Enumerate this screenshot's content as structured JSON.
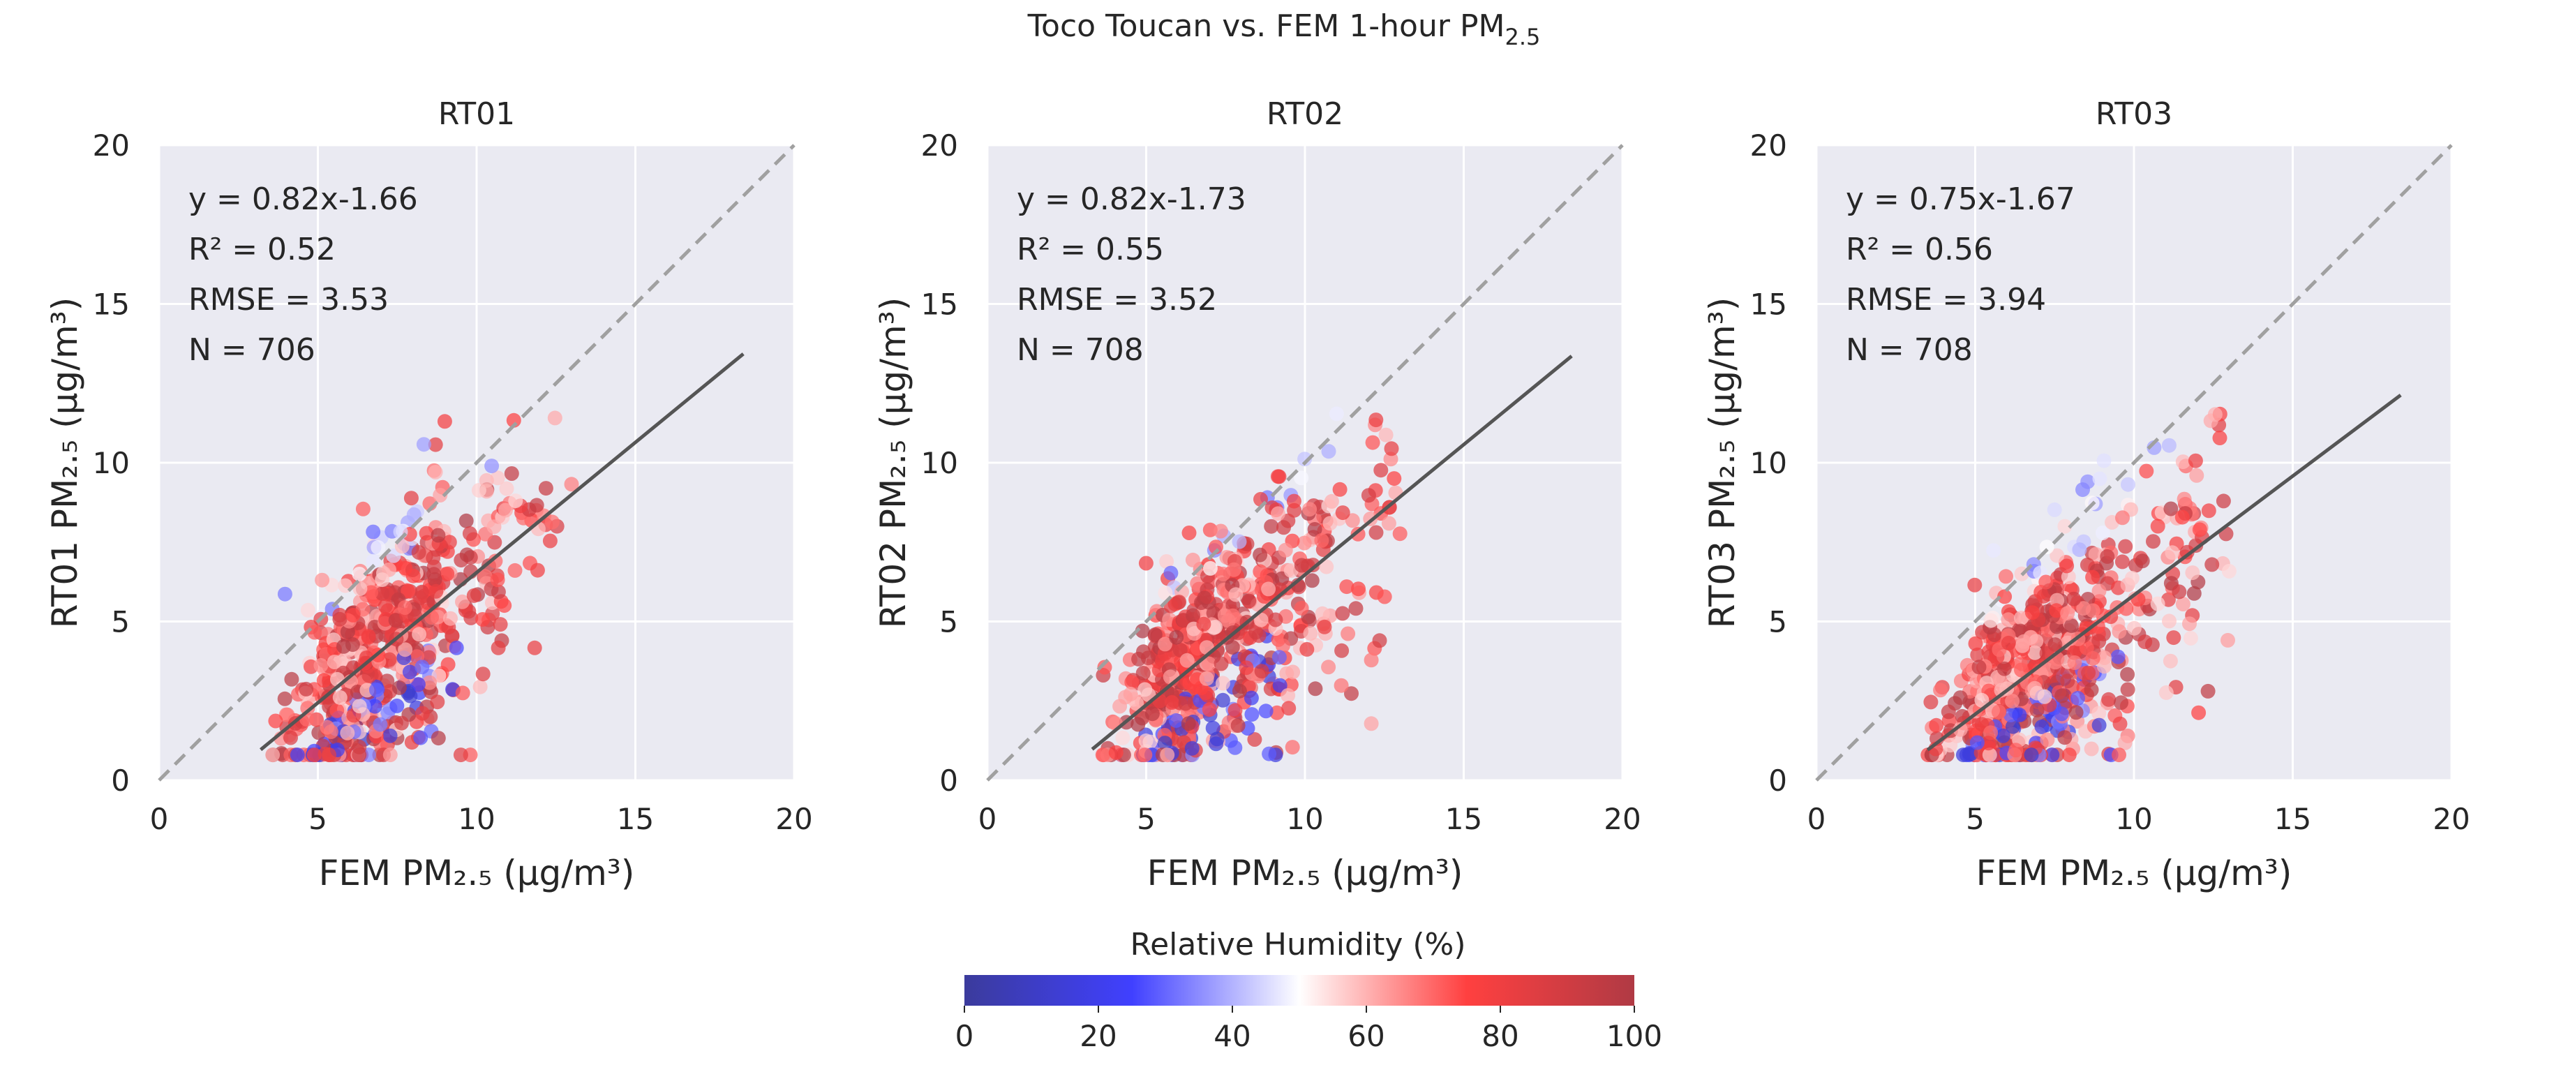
{
  "figure": {
    "title_prefix": "Toco Toucan vs. FEM 1-hour PM",
    "title_sub": "2.5"
  },
  "colorbar": {
    "label": "Relative Humidity (%)",
    "ticks": [
      "0",
      "20",
      "40",
      "60",
      "80",
      "100"
    ],
    "range": [
      0,
      100
    ],
    "colormap": [
      "#3b3b9c",
      "#4040ff",
      "#ffffff",
      "#ff4040",
      "#b03a44"
    ]
  },
  "colors": {
    "axes_bg": "#eaeaf2",
    "grid": "#ffffff",
    "fit_line": "#555555",
    "identity_line": "#a0a0a0"
  },
  "chart_data": [
    {
      "type": "scatter",
      "title": "RT01",
      "xlabel": "FEM PM₂.₅ (μg/m³)",
      "ylabel": "RT01 PM₂.₅ (μg/m³)",
      "xlim": [
        0,
        20
      ],
      "ylim": [
        0,
        20
      ],
      "xticks": [
        "0",
        "5",
        "10",
        "15",
        "20"
      ],
      "yticks": [
        "0",
        "5",
        "10",
        "15",
        "20"
      ],
      "grid": true,
      "identity_line": true,
      "fit": {
        "slope": 0.82,
        "intercept": -1.66,
        "x_range": [
          3.2,
          18.4
        ]
      },
      "stats": {
        "eq": "y = 0.82x-1.66",
        "r2": "R² = 0.52",
        "rmse": "RMSE = 3.53",
        "n": "N = 706"
      },
      "n_points": 706,
      "x_range": [
        3,
        15.5
      ]
    },
    {
      "type": "scatter",
      "title": "RT02",
      "xlabel": "FEM PM₂.₅ (μg/m³)",
      "ylabel": "RT02 PM₂.₅ (μg/m³)",
      "xlim": [
        0,
        20
      ],
      "ylim": [
        0,
        20
      ],
      "xticks": [
        "0",
        "5",
        "10",
        "15",
        "20"
      ],
      "yticks": [
        "0",
        "5",
        "10",
        "15",
        "20"
      ],
      "grid": true,
      "identity_line": true,
      "fit": {
        "slope": 0.82,
        "intercept": -1.73,
        "x_range": [
          3.3,
          18.4
        ]
      },
      "stats": {
        "eq": "y = 0.82x-1.73",
        "r2": "R² = 0.55",
        "rmse": "RMSE = 3.52",
        "n": "N = 708"
      },
      "n_points": 708,
      "x_range": [
        3,
        15.5
      ]
    },
    {
      "type": "scatter",
      "title": "RT03",
      "xlabel": "FEM PM₂.₅ (μg/m³)",
      "ylabel": "RT03 PM₂.₅ (μg/m³)",
      "xlim": [
        0,
        20
      ],
      "ylim": [
        0,
        20
      ],
      "xticks": [
        "0",
        "5",
        "10",
        "15",
        "20"
      ],
      "yticks": [
        "0",
        "5",
        "10",
        "15",
        "20"
      ],
      "grid": true,
      "identity_line": true,
      "fit": {
        "slope": 0.75,
        "intercept": -1.67,
        "x_range": [
          3.5,
          18.4
        ]
      },
      "stats": {
        "eq": "y = 0.75x-1.67",
        "r2": "R² = 0.56",
        "rmse": "RMSE = 3.94",
        "n": "N = 708"
      },
      "n_points": 708,
      "x_range": [
        3,
        15.5
      ]
    }
  ]
}
